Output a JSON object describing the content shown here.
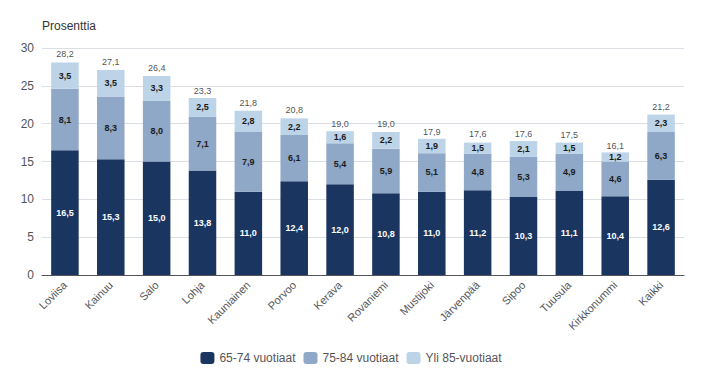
{
  "chart_data": {
    "type": "bar",
    "stacked": true,
    "ylabel": "Prosenttia",
    "categories": [
      "Loviisa",
      "Kainuu",
      "Salo",
      "Lohja",
      "Kauniainen",
      "Porvoo",
      "Kerava",
      "Rovaniemi",
      "Mustijoki",
      "Järvenpää",
      "Sipoo",
      "Tuusula",
      "Kirkkonummi",
      "Kaikki"
    ],
    "series": [
      {
        "name": "65-74 vuotiaat",
        "color": "#1a3560",
        "values": [
          16.5,
          15.3,
          15.0,
          13.8,
          11.0,
          12.4,
          12.0,
          10.8,
          11.0,
          11.2,
          10.3,
          11.1,
          10.4,
          12.6
        ],
        "value_labels": [
          "16,5",
          "15,3",
          "15,0",
          "13,8",
          "11,0",
          "12,4",
          "12,0",
          "10,8",
          "11,0",
          "11,2",
          "10,3",
          "11,1",
          "10,4",
          "12,6"
        ]
      },
      {
        "name": "75-84 vuotiaat",
        "color": "#8fa8c8",
        "values": [
          8.1,
          8.3,
          8.0,
          7.1,
          7.9,
          6.1,
          5.4,
          5.9,
          5.1,
          4.8,
          5.3,
          4.9,
          4.6,
          6.3
        ],
        "value_labels": [
          "8,1",
          "8,3",
          "8,0",
          "7,1",
          "7,9",
          "6,1",
          "5,4",
          "5,9",
          "5,1",
          "4,8",
          "5,3",
          "4,9",
          "4,6",
          "6,3"
        ]
      },
      {
        "name": "Yli 85-vuotiaat",
        "color": "#bdd4e8",
        "values": [
          3.5,
          3.5,
          3.3,
          2.5,
          2.8,
          2.2,
          1.6,
          2.2,
          1.9,
          1.5,
          2.1,
          1.5,
          1.2,
          2.3
        ],
        "value_labels": [
          "3,5",
          "3,5",
          "3,3",
          "2,5",
          "2,8",
          "2,2",
          "1,6",
          "2,2",
          "1,9",
          "1,5",
          "2,1",
          "1,5",
          "1,2",
          "2,3"
        ]
      }
    ],
    "totals": [
      28.2,
      27.1,
      26.4,
      23.3,
      21.8,
      20.8,
      19.0,
      19.0,
      17.9,
      17.6,
      17.6,
      17.5,
      16.1,
      21.2
    ],
    "total_labels": [
      "28,2",
      "27,1",
      "26,4",
      "23,3",
      "21,8",
      "20,8",
      "19,0",
      "19,0",
      "17,9",
      "17,6",
      "17,6",
      "17,5",
      "16,1",
      "21,2"
    ],
    "data_labels": true,
    "ylim": [
      0,
      30
    ],
    "yticks": [
      0,
      5,
      10,
      15,
      20,
      25,
      30
    ],
    "grid": true,
    "legend": "bottom"
  }
}
